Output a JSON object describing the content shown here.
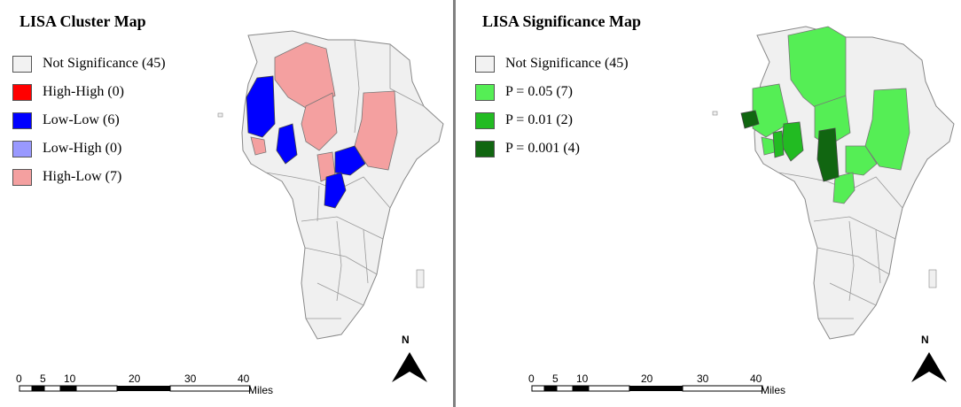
{
  "left_map": {
    "title": "LISA Cluster Map",
    "legend": [
      {
        "label": "Not Significance (45)",
        "color": "#f2f2f2"
      },
      {
        "label": "High-High (0)",
        "color": "#ff0000"
      },
      {
        "label": "Low-Low (6)",
        "color": "#0000ff"
      },
      {
        "label": "Low-High (0)",
        "color": "#9999ff"
      },
      {
        "label": "High-Low (7)",
        "color": "#f4a0a0"
      }
    ]
  },
  "right_map": {
    "title": "LISA Significance Map",
    "legend": [
      {
        "label": "Not Significance (45)",
        "color": "#f2f2f2"
      },
      {
        "label": "P = 0.05 (7)",
        "color": "#55ee55"
      },
      {
        "label": "P = 0.01 (2)",
        "color": "#22bb22"
      },
      {
        "label": "P = 0.001 (4)",
        "color": "#116611"
      }
    ]
  },
  "scale_bar": {
    "ticks": [
      "0",
      "5",
      "10",
      "20",
      "30",
      "40"
    ],
    "unit": "Miles"
  },
  "north_arrow": {
    "label": "N",
    "icon": "north-arrow-icon"
  }
}
